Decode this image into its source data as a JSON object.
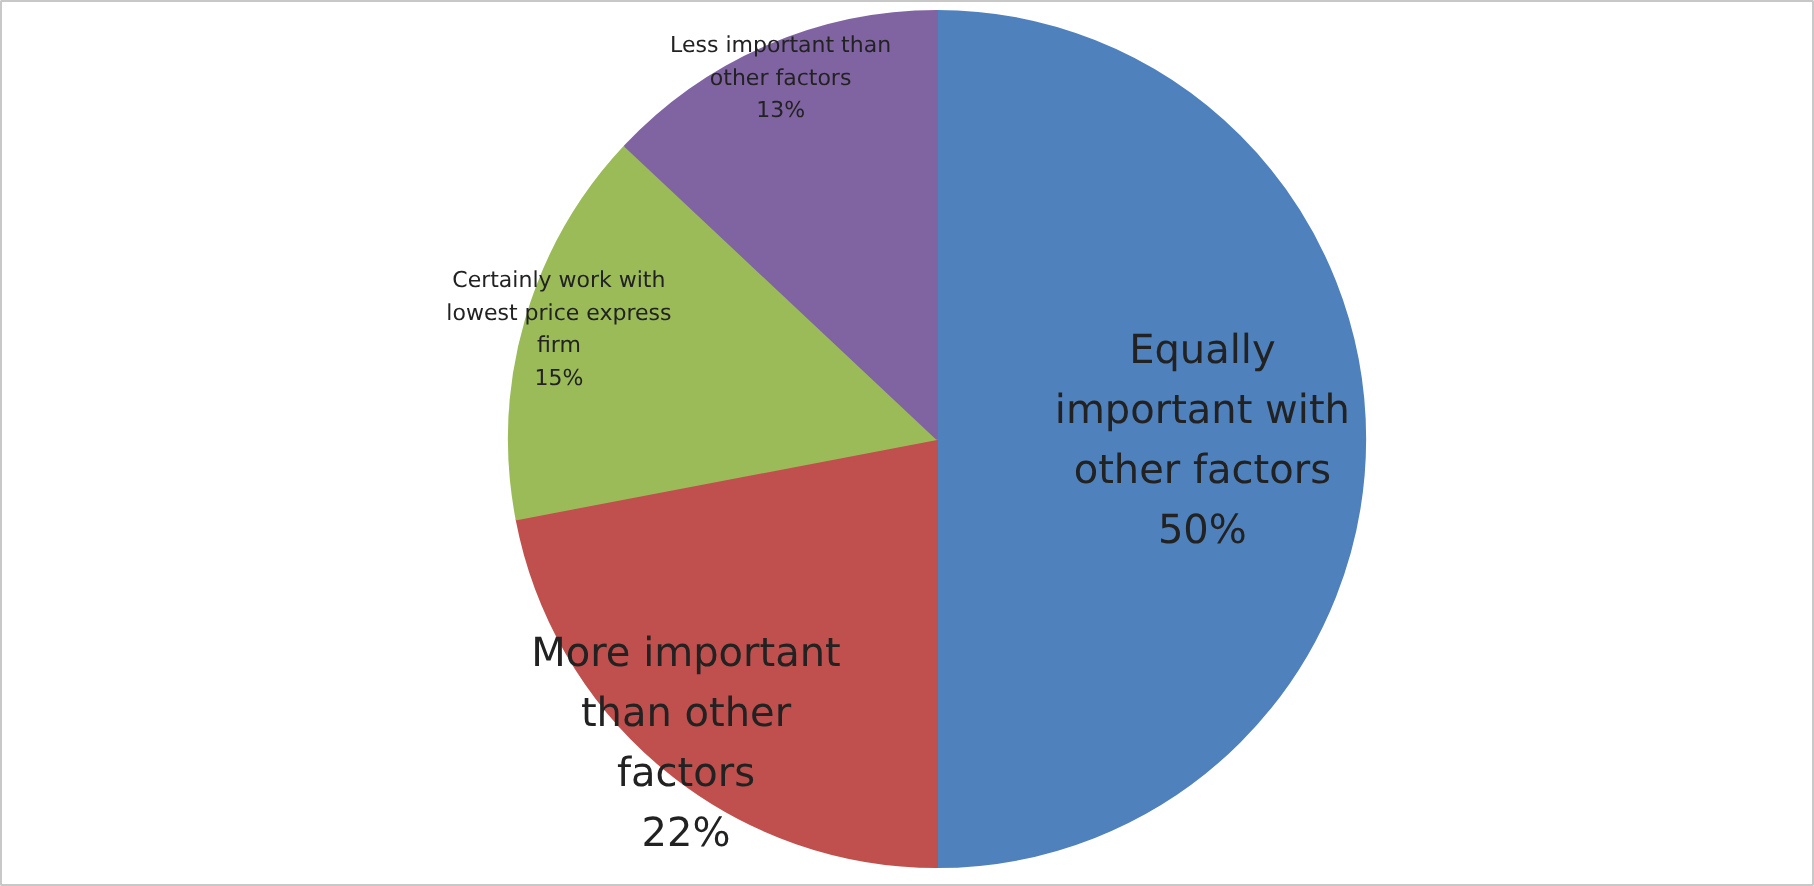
{
  "chart_data": {
    "type": "pie",
    "categories": [
      "Equally important with other factors",
      "More important than other factors",
      "Certainly work with lowest price express firm",
      "Less important than other factors"
    ],
    "values": [
      50,
      22,
      15,
      13
    ],
    "colors": [
      "#4f81bd",
      "#c0504d",
      "#9bbb59",
      "#8064a2"
    ],
    "value_labels": [
      "50%",
      "22%",
      "15%",
      "13%"
    ]
  }
}
